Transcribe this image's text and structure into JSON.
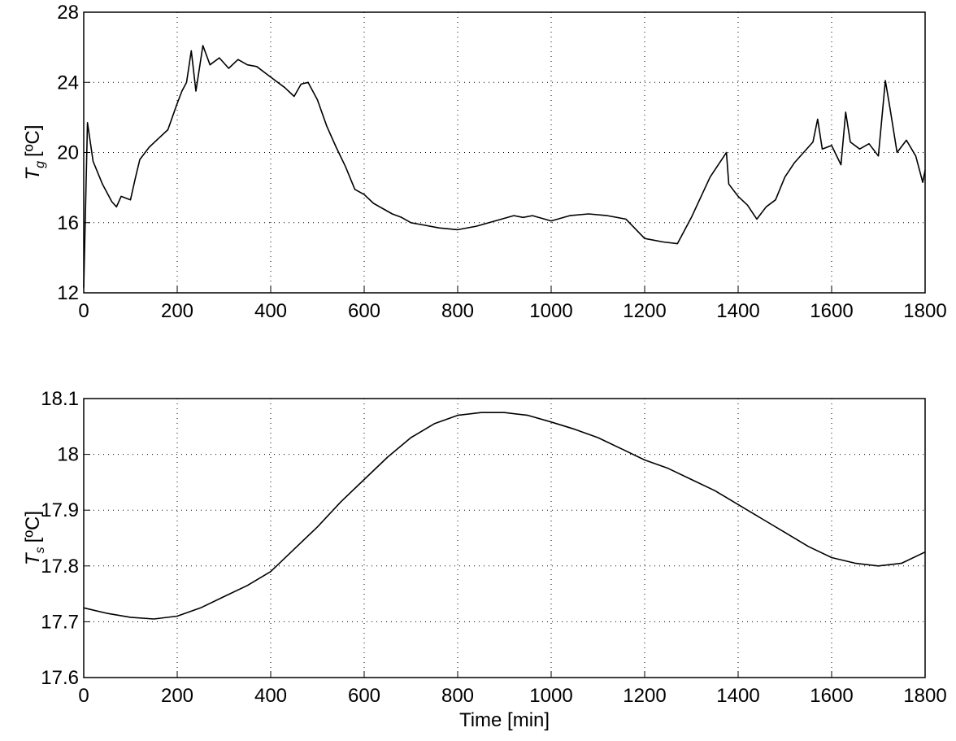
{
  "chart_data": [
    {
      "type": "line",
      "ylabel": "T",
      "ylabel_sub": "g",
      "ylabel_unit": "[ºC]",
      "grid": true,
      "color": "#000000",
      "xlim": [
        0,
        1800
      ],
      "xticks": [
        0,
        200,
        400,
        600,
        800,
        1000,
        1200,
        1400,
        1600,
        1800
      ],
      "ylim": [
        12,
        28
      ],
      "yticks": [
        12,
        16,
        20,
        24,
        28
      ],
      "x": [
        0,
        8,
        20,
        40,
        60,
        70,
        80,
        100,
        110,
        120,
        140,
        160,
        180,
        200,
        210,
        220,
        230,
        240,
        255,
        270,
        290,
        310,
        330,
        350,
        370,
        390,
        410,
        430,
        450,
        465,
        480,
        500,
        520,
        540,
        560,
        580,
        600,
        620,
        640,
        660,
        680,
        700,
        720,
        760,
        800,
        840,
        880,
        920,
        940,
        960,
        1000,
        1040,
        1080,
        1120,
        1160,
        1200,
        1240,
        1270,
        1300,
        1340,
        1375,
        1380,
        1400,
        1420,
        1440,
        1460,
        1480,
        1500,
        1520,
        1540,
        1560,
        1570,
        1580,
        1600,
        1620,
        1630,
        1640,
        1660,
        1680,
        1700,
        1715,
        1725,
        1740,
        1760,
        1780,
        1795,
        1800
      ],
      "values": [
        12.3,
        21.7,
        19.5,
        18.2,
        17.2,
        16.9,
        17.5,
        17.3,
        18.5,
        19.6,
        20.3,
        20.8,
        21.3,
        22.8,
        23.5,
        24.0,
        25.8,
        23.5,
        26.1,
        25.0,
        25.4,
        24.8,
        25.3,
        25.0,
        24.9,
        24.5,
        24.1,
        23.7,
        23.2,
        23.9,
        24.0,
        23.0,
        21.5,
        20.3,
        19.2,
        17.9,
        17.6,
        17.1,
        16.8,
        16.5,
        16.3,
        16.0,
        15.9,
        15.7,
        15.6,
        15.8,
        16.1,
        16.4,
        16.3,
        16.4,
        16.1,
        16.4,
        16.5,
        16.4,
        16.2,
        15.1,
        14.9,
        14.8,
        16.3,
        18.6,
        20.0,
        18.2,
        17.5,
        17.0,
        16.2,
        16.9,
        17.3,
        18.6,
        19.4,
        20.0,
        20.6,
        21.9,
        20.2,
        20.4,
        19.3,
        22.3,
        20.6,
        20.2,
        20.5,
        19.8,
        24.1,
        22.5,
        20.0,
        20.7,
        19.8,
        18.3,
        19.0
      ]
    },
    {
      "type": "line",
      "ylabel": "T",
      "ylabel_sub": "s",
      "ylabel_unit": "[ºC]",
      "xlabel": "Time [min]",
      "grid": true,
      "color": "#000000",
      "xlim": [
        0,
        1800
      ],
      "xticks": [
        0,
        200,
        400,
        600,
        800,
        1000,
        1200,
        1400,
        1600,
        1800
      ],
      "ylim": [
        17.6,
        18.1
      ],
      "yticks": [
        17.6,
        17.7,
        17.8,
        17.9,
        18,
        18.1
      ],
      "x": [
        0,
        50,
        100,
        150,
        200,
        250,
        300,
        350,
        400,
        450,
        500,
        550,
        600,
        650,
        700,
        750,
        800,
        850,
        900,
        950,
        1000,
        1050,
        1100,
        1150,
        1200,
        1250,
        1300,
        1350,
        1400,
        1450,
        1500,
        1550,
        1600,
        1650,
        1700,
        1750,
        1800
      ],
      "values": [
        17.725,
        17.715,
        17.708,
        17.705,
        17.71,
        17.725,
        17.745,
        17.765,
        17.79,
        17.83,
        17.87,
        17.915,
        17.955,
        17.995,
        18.03,
        18.055,
        18.07,
        18.075,
        18.075,
        18.07,
        18.058,
        18.045,
        18.03,
        18.01,
        17.99,
        17.975,
        17.955,
        17.935,
        17.91,
        17.885,
        17.86,
        17.835,
        17.815,
        17.805,
        17.8,
        17.805,
        17.825
      ]
    }
  ]
}
